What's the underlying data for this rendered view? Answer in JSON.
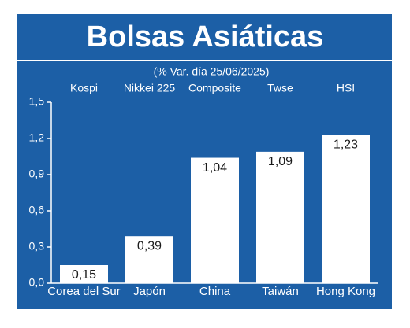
{
  "chart_data": {
    "type": "bar",
    "title": "Bolsas Asiáticas",
    "subtitle": "(% Var. día 25/06/2025)",
    "categories": [
      "Corea del Sur",
      "Japón",
      "China",
      "Taiwán",
      "Hong Kong"
    ],
    "index_names": [
      "Kospi",
      "Nikkei 225",
      "Composite",
      "Twse",
      "HSI"
    ],
    "values": [
      0.15,
      0.39,
      1.04,
      1.09,
      1.23
    ],
    "value_labels": [
      "0,15",
      "0,39",
      "1,04",
      "1,09",
      "1,23"
    ],
    "color": "#ffffff",
    "ylim": [
      0,
      1.5
    ],
    "yticks": [
      {
        "value": 0,
        "label": "0,0"
      },
      {
        "value": 0.3,
        "label": "0,3"
      },
      {
        "value": 0.6,
        "label": "0,6"
      },
      {
        "value": 0.9,
        "label": "0,9"
      },
      {
        "value": 1.2,
        "label": "1,2"
      },
      {
        "value": 1.5,
        "label": "1,5"
      }
    ],
    "grid": false
  }
}
